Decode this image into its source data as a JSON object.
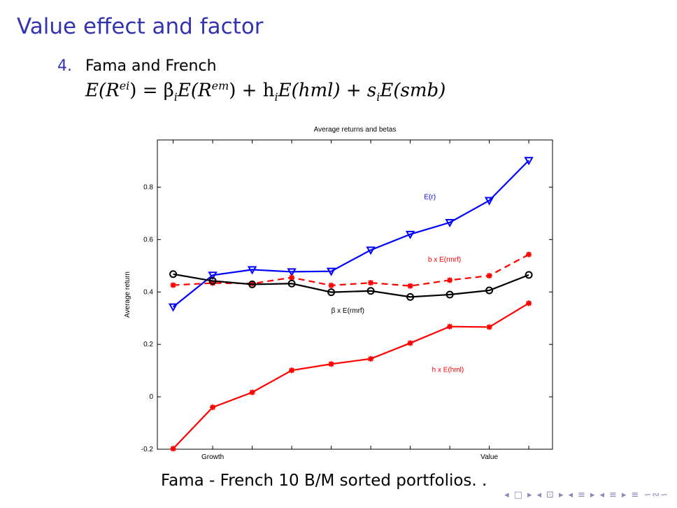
{
  "slide": {
    "title": "Value effect and factor",
    "item_number": "4.",
    "item_text": "Fama and French",
    "formula": {
      "lhs_E": "E(R",
      "lhs_sup": "ei",
      "lhs_close": ") = β",
      "beta_sub": "i",
      "term1": "E(R",
      "term1_sup": "em",
      "term1_close": ") + h",
      "h_sub": "i",
      "term2": "E(hml) + s",
      "s_sub": "i",
      "term3": "E(smb)"
    },
    "caption": "Fama - French 10 B/M sorted portfolios. ."
  },
  "nav": {
    "glyphs": [
      "◂",
      "□",
      "▸",
      "◂",
      "⊡",
      "▸",
      "◂",
      "≡",
      "▸",
      "◂",
      "≡",
      "▸",
      "≡",
      "∽∾∽"
    ]
  },
  "chart_data": {
    "type": "line",
    "title": "Average returns and betas",
    "ylabel": "Average return",
    "xlabel": "",
    "x": [
      1,
      2,
      3,
      4,
      5,
      6,
      7,
      8,
      9,
      10
    ],
    "x_tick_labels": [
      {
        "x": 2,
        "label": "Growth"
      },
      {
        "x": 9,
        "label": "Value"
      }
    ],
    "xlim": [
      0.6,
      10.6
    ],
    "ylim": [
      -0.2,
      0.98
    ],
    "yticks": [
      -0.2,
      0,
      0.2,
      0.4,
      0.6,
      0.8
    ],
    "ytick_labels": [
      "-0.2",
      "0",
      "0.2",
      "0.4",
      "0.6",
      "0.8"
    ],
    "grid": false,
    "series": [
      {
        "name": "E(r)",
        "color": "#0000ff",
        "marker": "triangle-down",
        "dash": "solid",
        "values": [
          0.343,
          0.464,
          0.485,
          0.477,
          0.479,
          0.56,
          0.62,
          0.665,
          0.749,
          0.902
        ],
        "label_x": 7.35,
        "label_y": 0.755
      },
      {
        "name": "b x E(rmrf)",
        "color": "#ff0000",
        "marker": "asterisk",
        "dash": "dashed",
        "values": [
          0.426,
          0.434,
          0.432,
          0.455,
          0.425,
          0.435,
          0.423,
          0.445,
          0.462,
          0.543
        ],
        "label_x": 7.45,
        "label_y": 0.515
      },
      {
        "name": "β x E(rmrf)",
        "color": "#000000",
        "marker": "circle",
        "dash": "solid",
        "values": [
          0.468,
          0.442,
          0.429,
          0.432,
          0.399,
          0.404,
          0.381,
          0.39,
          0.406,
          0.465
        ],
        "label_x": 5.0,
        "label_y": 0.32
      },
      {
        "name": "h x E(hml)",
        "color": "#ff0000",
        "marker": "asterisk",
        "dash": "solid",
        "values": [
          -0.198,
          -0.04,
          0.017,
          0.101,
          0.125,
          0.145,
          0.205,
          0.268,
          0.266,
          0.357
        ],
        "label_x": 7.55,
        "label_y": 0.095
      }
    ]
  }
}
